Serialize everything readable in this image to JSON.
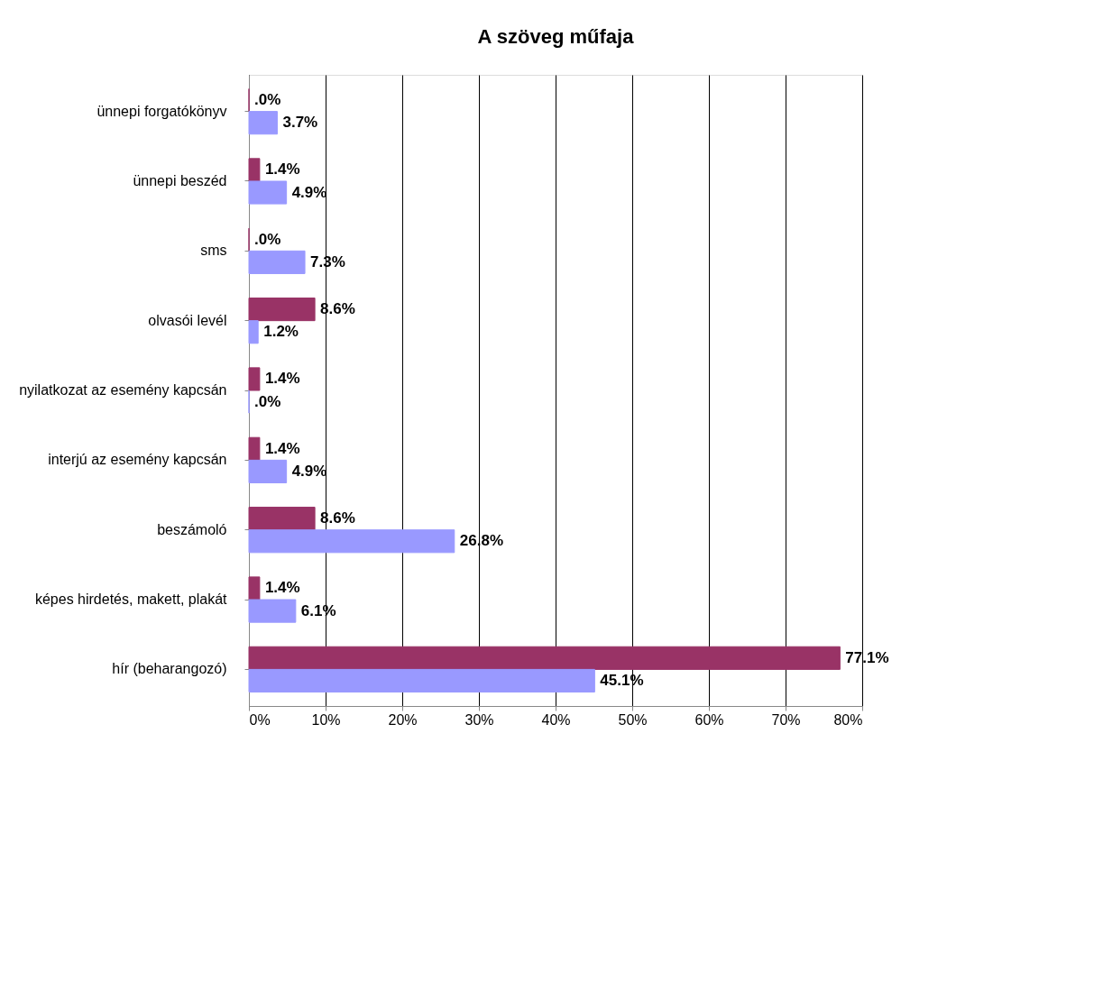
{
  "chart_data": {
    "type": "bar",
    "orientation": "horizontal",
    "title": "A szöveg műfaja",
    "categories": [
      "ünnepi forgatókönyv",
      "ünnepi beszéd",
      "sms",
      "olvasói levél",
      "nyilatkozat az esemény kapcsán",
      "interjú az esemény kapcsán",
      "beszámoló",
      "képes hirdetés, makett, plakát",
      "hír (beharangozó)"
    ],
    "series": [
      {
        "color": "#993366",
        "values": [
          0,
          1.4,
          0,
          8.6,
          1.4,
          1.4,
          8.6,
          1.4,
          77.1
        ],
        "value_labels": [
          ".0%",
          "1.4%",
          ".0%",
          "8.6%",
          "1.4%",
          "1.4%",
          "8.6%",
          "1.4%",
          "77.1%"
        ]
      },
      {
        "color": "#9999ff",
        "values": [
          3.7,
          4.9,
          7.3,
          1.2,
          0,
          4.9,
          26.8,
          6.1,
          45.1
        ],
        "value_labels": [
          "3.7%",
          "4.9%",
          "7.3%",
          "1.2%",
          ".0%",
          "4.9%",
          "26.8%",
          "6.1%",
          "45.1%"
        ]
      }
    ],
    "xlim": [
      0,
      80
    ],
    "xticks": [
      {
        "value": 0,
        "label": "0%"
      },
      {
        "value": 10,
        "label": "10%"
      },
      {
        "value": 20,
        "label": "20%"
      },
      {
        "value": 30,
        "label": "30%"
      },
      {
        "value": 40,
        "label": "40%"
      },
      {
        "value": 50,
        "label": "50%"
      },
      {
        "value": 60,
        "label": "60%"
      },
      {
        "value": 70,
        "label": "70%"
      },
      {
        "value": 80,
        "label": "80%"
      }
    ],
    "grid": "x",
    "legend": false
  }
}
